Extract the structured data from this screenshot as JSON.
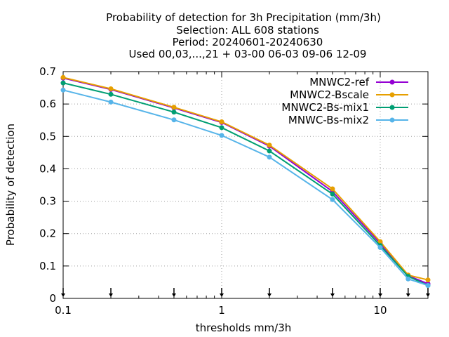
{
  "chart_data": {
    "type": "line",
    "title_lines": [
      "Probability of detection  for 3h Precipitation (mm/3h)",
      "Selection: ALL    608 stations",
      "Period: 20240601-20240630",
      "Used 00,03,...,21 + 03-00 06-03 09-06 12-09"
    ],
    "xlabel": "thresholds mm/3h",
    "ylabel": "Probability of detection",
    "x_scale": "log",
    "xlim": [
      0.1,
      20
    ],
    "ylim": [
      0,
      0.7
    ],
    "x_ticks": [
      0.1,
      1,
      10
    ],
    "x_tick_labels": [
      "0.1",
      "1",
      "10"
    ],
    "y_ticks": [
      0,
      0.1,
      0.2,
      0.3,
      0.4,
      0.5,
      0.6,
      0.7
    ],
    "y_tick_labels": [
      "0",
      "0.1",
      "0.2",
      "0.3",
      "0.4",
      "0.5",
      "0.6",
      "0.7"
    ],
    "grid": true,
    "legend_position": "top-right",
    "x": [
      0.1,
      0.2,
      0.5,
      1,
      2,
      5,
      10,
      15,
      20
    ],
    "threshold_arrows": [
      0.1,
      0.2,
      0.5,
      1,
      2,
      5,
      10,
      15,
      20
    ],
    "series": [
      {
        "name": "MNWC2-ref",
        "color": "#9400d3",
        "values": [
          0.68,
          0.645,
          0.588,
          0.543,
          0.47,
          0.33,
          0.17,
          0.07,
          0.045
        ]
      },
      {
        "name": "MNWC2-Bscale",
        "color": "#e69f00",
        "values": [
          0.682,
          0.647,
          0.59,
          0.545,
          0.473,
          0.338,
          0.175,
          0.072,
          0.057
        ]
      },
      {
        "name": "MNWC2-Bs-mix1",
        "color": "#009e73",
        "values": [
          0.665,
          0.63,
          0.575,
          0.527,
          0.455,
          0.322,
          0.163,
          0.068,
          0.04
        ]
      },
      {
        "name": "MNWC-Bs-mix2",
        "color": "#56b4e9",
        "values": [
          0.643,
          0.606,
          0.551,
          0.503,
          0.436,
          0.305,
          0.157,
          0.06,
          0.04
        ]
      }
    ]
  }
}
